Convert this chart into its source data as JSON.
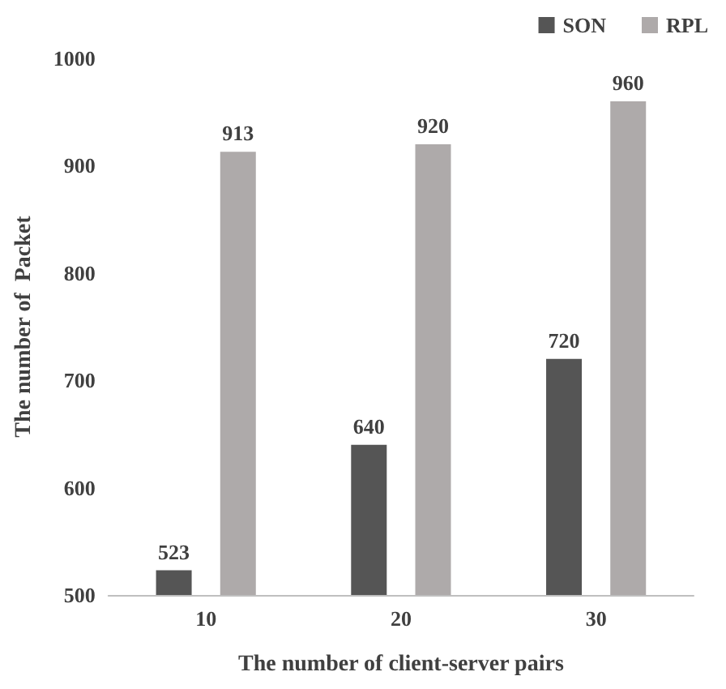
{
  "chart_data": {
    "type": "bar",
    "xlabel": "The number of client-server pairs",
    "ylabel": "The number of  Packet",
    "categories": [
      "10",
      "20",
      "30"
    ],
    "series": [
      {
        "name": "SON",
        "color": "#555555",
        "values": [
          523,
          640,
          720
        ]
      },
      {
        "name": "RPL",
        "color": "#aeaaaa",
        "values": [
          913,
          920,
          960
        ]
      }
    ],
    "ylim": [
      500,
      1000
    ],
    "yticks": [
      500,
      600,
      700,
      800,
      900,
      1000
    ],
    "grid": false,
    "legend": "top right",
    "data_labels": true
  }
}
